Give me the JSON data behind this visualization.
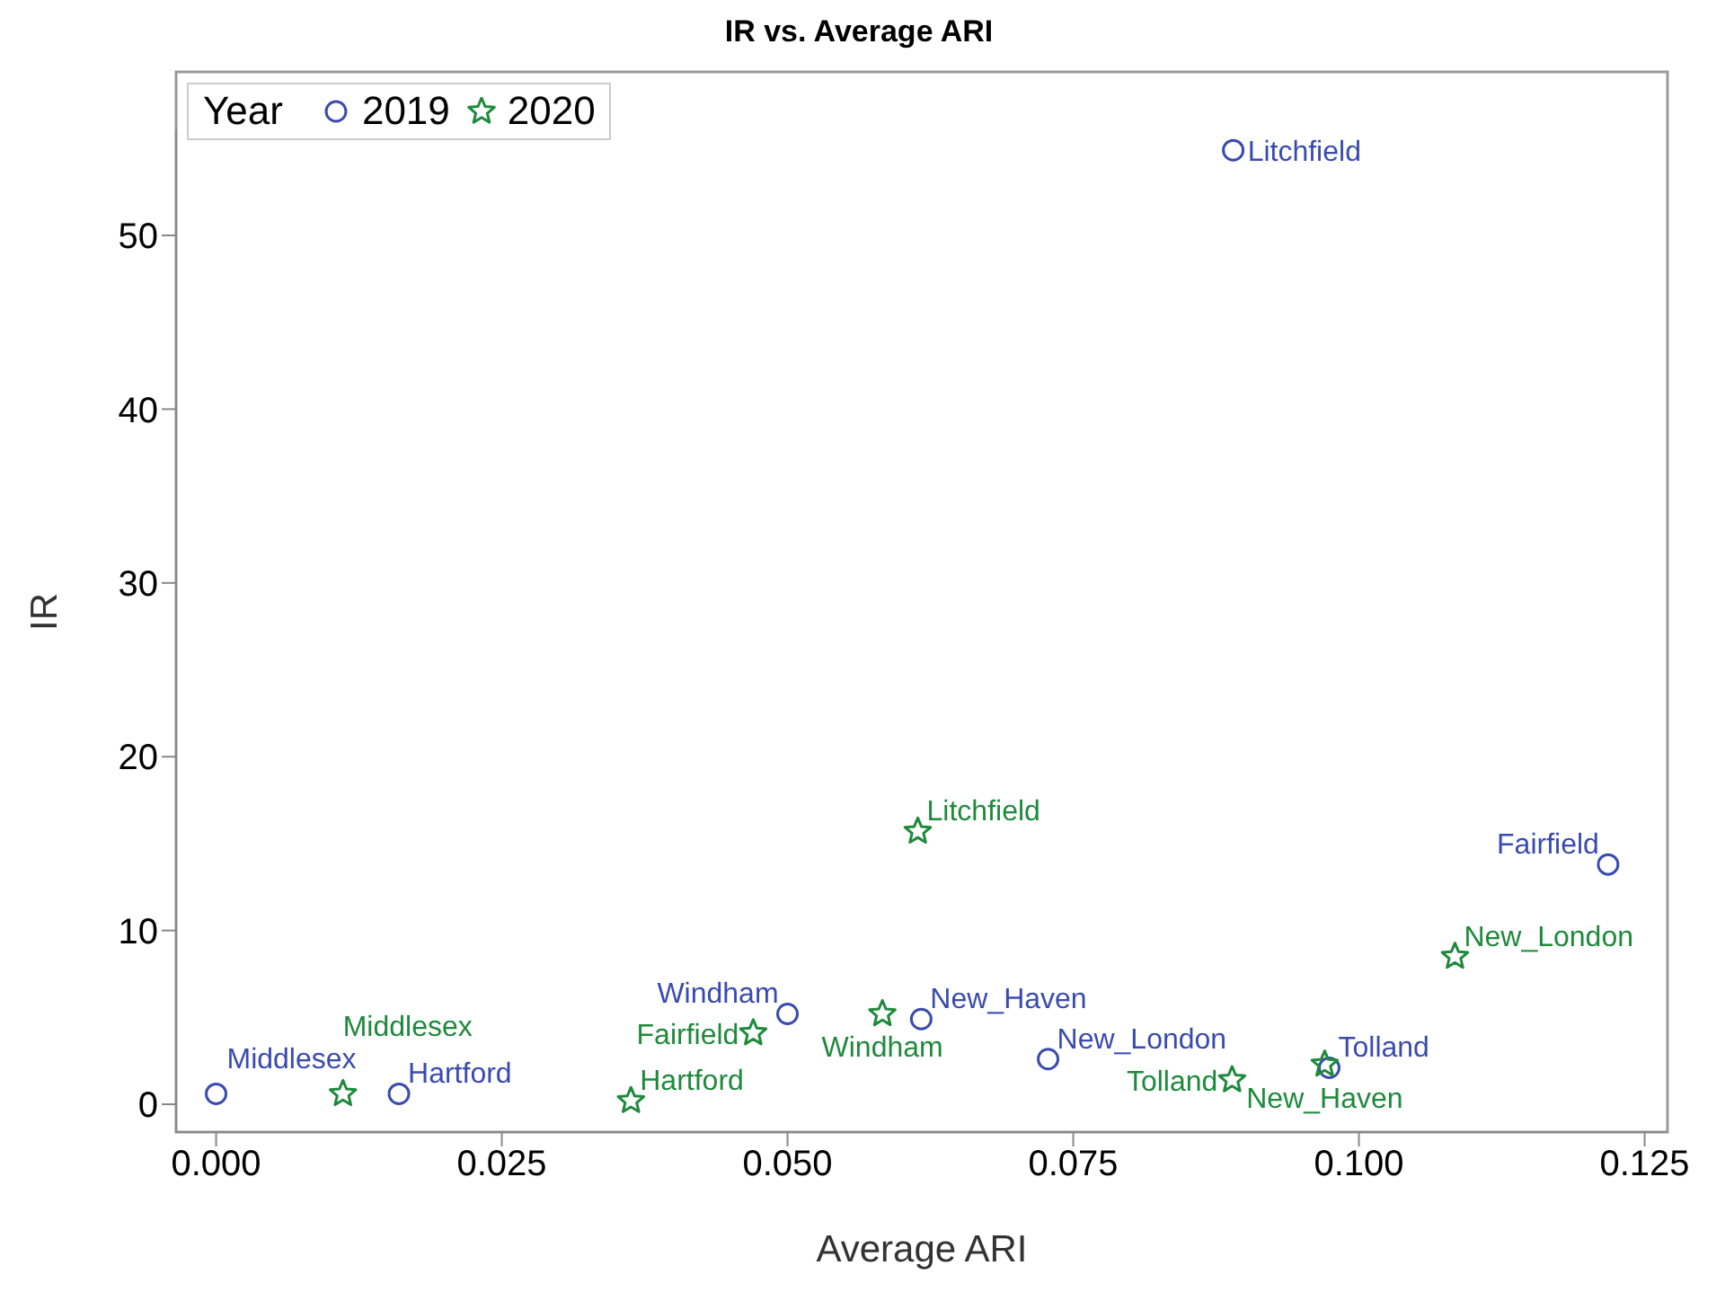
{
  "chart_data": {
    "type": "scatter",
    "title": "IR vs. Average ARI",
    "xlabel": "Average ARI",
    "ylabel": "IR",
    "legend_title": "Year",
    "legend": "top left",
    "grid": false,
    "xlim": [
      -0.0035,
      0.127
    ],
    "xticks": [
      {
        "value": 0,
        "label": "0.000"
      },
      {
        "value": 0.025,
        "label": "0.025"
      },
      {
        "value": 0.05,
        "label": "0.050"
      },
      {
        "value": 0.075,
        "label": "0.075"
      },
      {
        "value": 0.1,
        "label": "0.100"
      },
      {
        "value": 0.125,
        "label": "0.125"
      }
    ],
    "ylim": [
      -1.6,
      56.1
    ],
    "yticks": [
      0,
      10,
      20,
      30,
      40,
      50
    ],
    "series": [
      {
        "name": "2019",
        "color": "#3a4bb0",
        "marker": "circle",
        "x": [
          0.0,
          0.016,
          0.05,
          0.0617,
          0.0728,
          0.089,
          0.1218,
          0.0974
        ],
        "values": [
          0.6,
          0.6,
          5.2,
          4.9,
          2.6,
          54.9,
          13.8,
          2.1
        ]
      },
      {
        "name": "2020",
        "color": "#1e8a3c",
        "marker": "star",
        "x": [
          0.0111,
          0.0363,
          0.047,
          0.0583,
          0.0614,
          0.0889,
          0.097,
          0.1084
        ],
        "values": [
          0.6,
          0.2,
          4.1,
          5.2,
          15.7,
          1.4,
          2.3,
          8.5
        ]
      }
    ],
    "annotations": [
      {
        "text": "Middlesex",
        "x": 0.0,
        "y": 0.6
      },
      {
        "text": "Hartford",
        "x": 0.016,
        "y": 0.6
      },
      {
        "text": "Windham",
        "x": 0.05,
        "y": 5.2
      },
      {
        "text": "New_Haven",
        "x": 0.0617,
        "y": 4.9
      },
      {
        "text": "New_London",
        "x": 0.0728,
        "y": 2.6
      },
      {
        "text": "Litchfield",
        "x": 0.089,
        "y": 54.9
      },
      {
        "text": "Fairfield",
        "x": 0.1218,
        "y": 13.8
      },
      {
        "text": "Tolland",
        "x": 0.0974,
        "y": 2.1
      },
      {
        "text": "Middlesex",
        "x": 0.0111,
        "y": 0.6
      },
      {
        "text": "Hartford",
        "x": 0.0363,
        "y": 0.2
      },
      {
        "text": "Fairfield",
        "x": 0.047,
        "y": 4.1
      },
      {
        "text": "Windham",
        "x": 0.0583,
        "y": 5.2
      },
      {
        "text": "Litchfield",
        "x": 0.0614,
        "y": 15.7
      },
      {
        "text": "Tolland",
        "x": 0.0889,
        "y": 1.4
      },
      {
        "text": "New_Haven",
        "x": 0.097,
        "y": 2.3
      },
      {
        "text": "New_London",
        "x": 0.1084,
        "y": 8.5
      }
    ]
  }
}
